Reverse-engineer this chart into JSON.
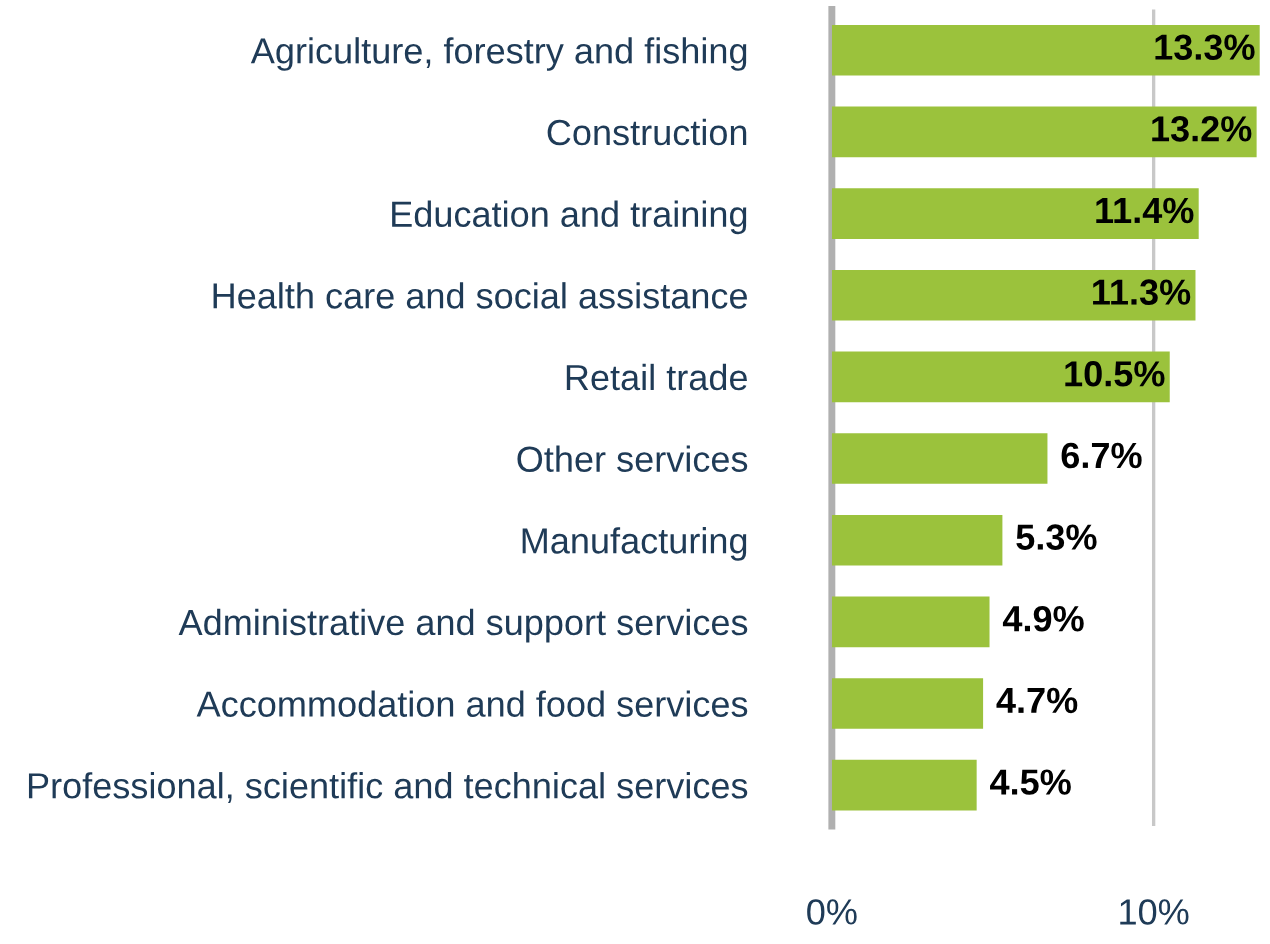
{
  "chart_data": {
    "type": "bar",
    "orientation": "horizontal",
    "categories": [
      "Agriculture, forestry and fishing",
      "Construction",
      "Education and training",
      "Health care and social assistance",
      "Retail trade",
      "Other services",
      "Manufacturing",
      "Administrative and support services",
      "Accommodation and food services",
      "Professional, scientific and technical services"
    ],
    "values": [
      13.3,
      13.2,
      11.4,
      11.3,
      10.5,
      6.7,
      5.3,
      4.9,
      4.7,
      4.5
    ],
    "value_labels": [
      "13.3%",
      "13.2%",
      "11.4%",
      "11.3%",
      "10.5%",
      "6.7%",
      "5.3%",
      "4.9%",
      "4.7%",
      "4.5%"
    ],
    "color": "#9bc23c",
    "xlim": [
      0,
      13.3
    ],
    "xticks": [
      {
        "value": 0,
        "label": "0%"
      },
      {
        "value": 10,
        "label": "10%"
      }
    ],
    "grid": "x"
  }
}
